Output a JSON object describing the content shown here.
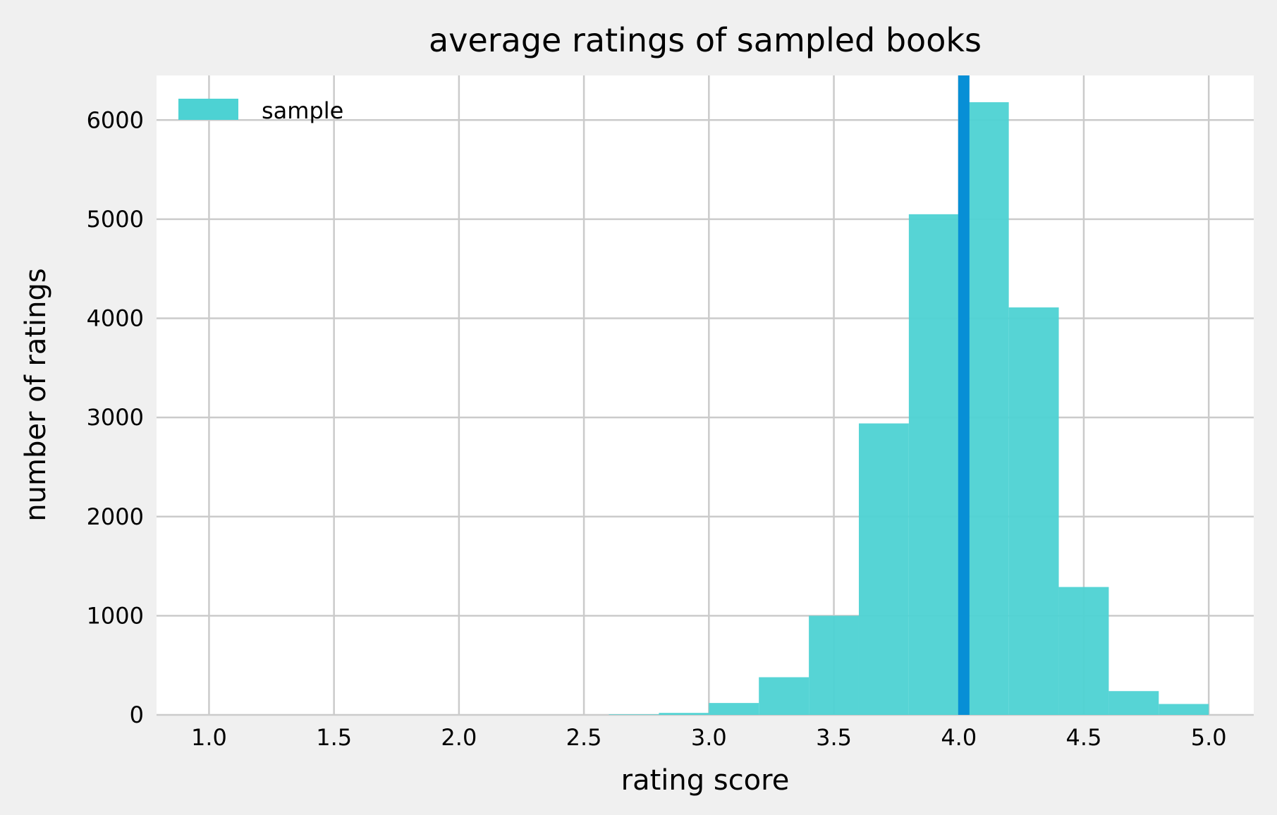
{
  "chart_data": {
    "type": "bar",
    "title": "average ratings of sampled books",
    "xlabel": "rating score",
    "ylabel": "number of ratings",
    "xlim": [
      0.79,
      5.18
    ],
    "ylim": [
      0,
      6450
    ],
    "xticks": [
      1.0,
      1.5,
      2.0,
      2.5,
      3.0,
      3.5,
      4.0,
      4.5,
      5.0
    ],
    "xtick_labels": [
      "1.0",
      "1.5",
      "2.0",
      "2.5",
      "3.0",
      "3.5",
      "4.0",
      "4.5",
      "5.0"
    ],
    "yticks": [
      0,
      1000,
      2000,
      3000,
      4000,
      5000,
      6000
    ],
    "ytick_labels": [
      "0",
      "1000",
      "2000",
      "3000",
      "4000",
      "5000",
      "6000"
    ],
    "grid": true,
    "legend_position": "top-left",
    "series": [
      {
        "name": "sample",
        "color": "#4dd2d3",
        "bins": [
          {
            "start": 1.0,
            "end": 1.2,
            "count": 0
          },
          {
            "start": 1.2,
            "end": 1.4,
            "count": 0
          },
          {
            "start": 1.4,
            "end": 1.6,
            "count": 0
          },
          {
            "start": 1.6,
            "end": 1.8,
            "count": 0
          },
          {
            "start": 1.8,
            "end": 2.0,
            "count": 0
          },
          {
            "start": 2.0,
            "end": 2.2,
            "count": 0
          },
          {
            "start": 2.2,
            "end": 2.4,
            "count": 0
          },
          {
            "start": 2.4,
            "end": 2.6,
            "count": 0
          },
          {
            "start": 2.6,
            "end": 2.8,
            "count": 5
          },
          {
            "start": 2.8,
            "end": 3.0,
            "count": 20
          },
          {
            "start": 3.0,
            "end": 3.2,
            "count": 120
          },
          {
            "start": 3.2,
            "end": 3.4,
            "count": 380
          },
          {
            "start": 3.4,
            "end": 3.6,
            "count": 1000
          },
          {
            "start": 3.6,
            "end": 3.8,
            "count": 2940
          },
          {
            "start": 3.8,
            "end": 4.0,
            "count": 5050
          },
          {
            "start": 4.0,
            "end": 4.2,
            "count": 6180
          },
          {
            "start": 4.2,
            "end": 4.4,
            "count": 4110
          },
          {
            "start": 4.4,
            "end": 4.6,
            "count": 1290
          },
          {
            "start": 4.6,
            "end": 4.8,
            "count": 240
          },
          {
            "start": 4.8,
            "end": 5.0,
            "count": 110
          }
        ]
      }
    ],
    "vertical_line": {
      "x": 4.02,
      "color": "#078fd6"
    }
  }
}
